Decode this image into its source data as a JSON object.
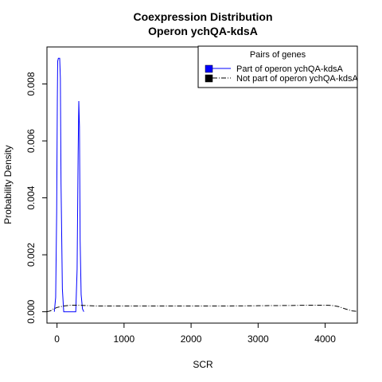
{
  "chart_data": {
    "type": "line",
    "title": "Coexpression Distribution",
    "subtitle": "Operon ychQA-kdsA",
    "xlabel": "SCR",
    "ylabel": "Probability Density",
    "xlim": [
      -150,
      4480
    ],
    "ylim": [
      -0.0004,
      0.0093
    ],
    "x_ticks": [
      0,
      1000,
      2000,
      3000,
      4000
    ],
    "x_tick_labels": [
      "0",
      "1000",
      "2000",
      "3000",
      "4000"
    ],
    "y_ticks": [
      0,
      0.002,
      0.004,
      0.006,
      0.008
    ],
    "y_tick_labels": [
      "0.000",
      "0.002",
      "0.004",
      "0.006",
      "0.008"
    ],
    "grid": false,
    "legend": {
      "title": "Pairs of genes",
      "placement": "top-right"
    },
    "series": [
      {
        "name": "Part of operon ychQA-kdsA",
        "color": "#0000ff",
        "line_style": "solid",
        "x": [
          -40,
          -20,
          -5,
          5,
          10,
          20,
          30,
          40,
          50,
          60,
          80,
          100,
          200,
          280,
          300,
          315,
          325,
          335,
          345,
          360,
          380,
          400
        ],
        "y": [
          0.0,
          0.0005,
          0.0035,
          0.0075,
          0.0088,
          0.0089,
          0.0089,
          0.0089,
          0.0082,
          0.0045,
          0.0008,
          0.0,
          0.0,
          0.0,
          0.0015,
          0.0055,
          0.0074,
          0.0065,
          0.0025,
          0.0006,
          0.0001,
          0.0
        ]
      },
      {
        "name": "Not part of operon ychQA-kdsA",
        "color": "#000000",
        "line_style": "dashdot",
        "x": [
          -150,
          -100,
          -50,
          0,
          100,
          200,
          300,
          400,
          600,
          1000,
          1500,
          2000,
          2500,
          3000,
          3500,
          3800,
          4000,
          4100,
          4200,
          4300,
          4400,
          4480
        ],
        "y": [
          0.0,
          3e-05,
          0.0001,
          0.00015,
          0.0002,
          0.00023,
          0.00023,
          0.00022,
          0.0002,
          0.0002,
          0.0002,
          0.0002,
          0.0002,
          0.00021,
          0.00022,
          0.00023,
          0.00023,
          0.00022,
          0.00018,
          0.0001,
          3e-05,
          1e-05
        ]
      }
    ]
  }
}
